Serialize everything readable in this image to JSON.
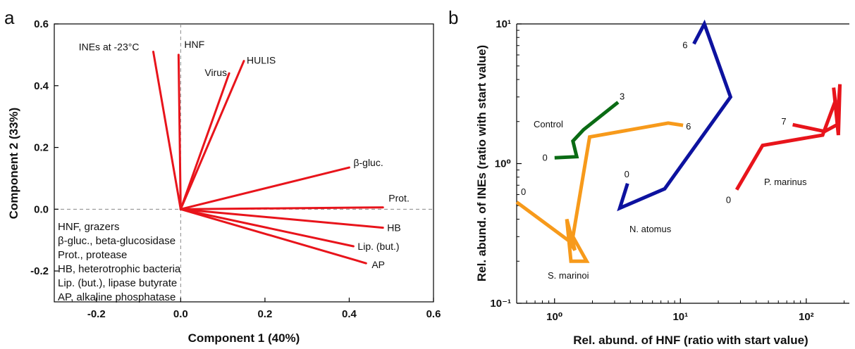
{
  "chart_data": [
    {
      "type": "biplot",
      "panel_label": "a",
      "xlabel": "Component 1 (40%)",
      "ylabel": "Component 2 (33%)",
      "xlim": [
        -0.3,
        0.6
      ],
      "ylim": [
        -0.3,
        0.6
      ],
      "xticks": [
        -0.2,
        0.0,
        0.2,
        0.4,
        0.6
      ],
      "xtick_labels": [
        "-0.2",
        "0.0",
        "0.2",
        "0.4",
        "0.6"
      ],
      "yticks": [
        -0.2,
        0.0,
        0.2,
        0.4,
        0.6
      ],
      "ytick_labels": [
        "-0.2",
        "0.0",
        "0.2",
        "0.4",
        "0.6"
      ],
      "vector_color": "#e8141b",
      "vectors": [
        {
          "label": "INEs at -23°C",
          "x": -0.065,
          "y": 0.51
        },
        {
          "label": "HNF",
          "x": -0.005,
          "y": 0.5
        },
        {
          "label": "Virus",
          "x": 0.115,
          "y": 0.44
        },
        {
          "label": "HULIS",
          "x": 0.15,
          "y": 0.48
        },
        {
          "label": "β-gluc.",
          "x": 0.4,
          "y": 0.135
        },
        {
          "label": "Prot.",
          "x": 0.48,
          "y": 0.006
        },
        {
          "label": "HB",
          "x": 0.48,
          "y": -0.06
        },
        {
          "label": "Lip. (but.)",
          "x": 0.41,
          "y": -0.12
        },
        {
          "label": "AP",
          "x": 0.44,
          "y": -0.175
        }
      ],
      "legend_lines": [
        "HNF, grazers",
        "β-gluc., beta-glucosidase",
        "Prot., protease",
        "HB, heterotrophic bacteria",
        "Lip. (but.), lipase butyrate",
        "AP, alkaline phosphatase"
      ]
    },
    {
      "type": "line",
      "panel_label": "b",
      "xlabel": "Rel. abund. of HNF (ratio with start value)",
      "ylabel": "Rel. abund. of INEs (ratio with start value)",
      "xscale": "log",
      "yscale": "log",
      "xlim": [
        0.5,
        220
      ],
      "ylim": [
        0.1,
        10
      ],
      "xticks": [
        1,
        10,
        100
      ],
      "xtick_labels": [
        "10⁰",
        "10¹",
        "10²"
      ],
      "yticks": [
        0.1,
        1,
        10
      ],
      "ytick_labels": [
        "10⁻¹",
        "10⁰",
        "10¹"
      ],
      "series": [
        {
          "name": "Control",
          "color": "#0a6b14",
          "x": [
            1.0,
            1.5,
            1.4,
            1.7,
            3.2
          ],
          "y": [
            1.1,
            1.12,
            1.45,
            1.75,
            2.75
          ],
          "start_label": "0",
          "end_label": "3"
        },
        {
          "name": "S. marinoi",
          "color": "#f79a1b",
          "x": [
            0.5,
            1.3,
            1.45,
            1.25,
            1.35,
            1.8,
            1.4,
            1.9,
            8.0,
            10.5
          ],
          "y": [
            0.53,
            0.28,
            0.24,
            0.4,
            0.2,
            0.2,
            0.3,
            1.55,
            1.95,
            1.88
          ],
          "start_label": "0",
          "end_label": "6"
        },
        {
          "name": "N. atomus",
          "color": "#0d129f",
          "x": [
            3.8,
            3.3,
            7.5,
            25.0,
            15.5,
            12.8
          ],
          "y": [
            0.72,
            0.48,
            0.66,
            3.0,
            10.0,
            7.2
          ],
          "start_label": "0",
          "end_label": "6"
        },
        {
          "name": "P. marinus",
          "color": "#e8141b",
          "x": [
            28.0,
            45.0,
            135.0,
            170.0,
            165.0,
            180.0,
            185.0,
            176.0,
            140.0,
            78.0
          ],
          "y": [
            0.65,
            1.35,
            1.6,
            2.8,
            3.5,
            1.6,
            3.7,
            1.9,
            1.7,
            1.9
          ],
          "start_label": "0",
          "end_label": "7"
        }
      ]
    }
  ]
}
